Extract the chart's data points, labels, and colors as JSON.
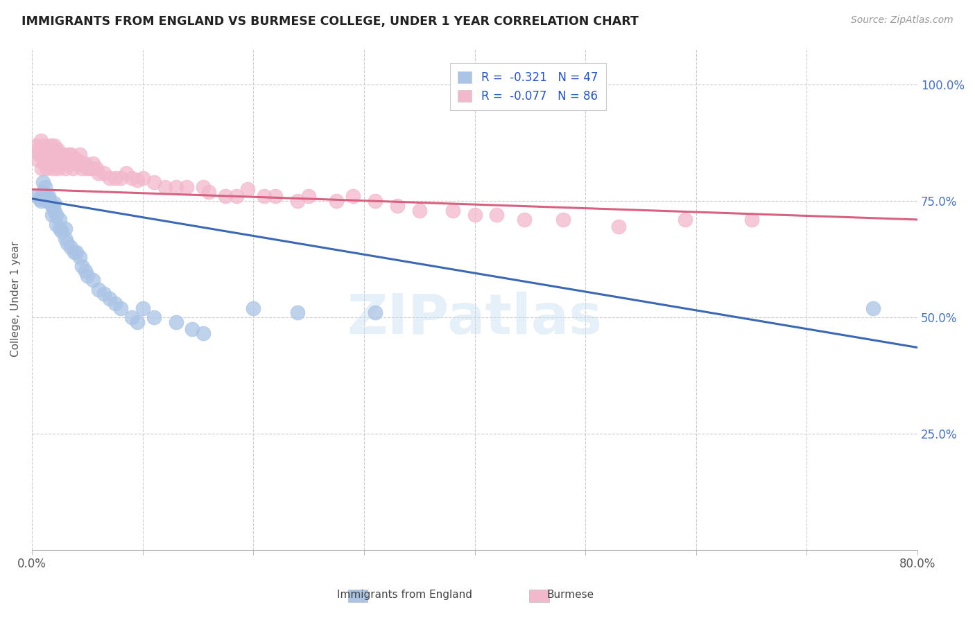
{
  "title": "IMMIGRANTS FROM ENGLAND VS BURMESE COLLEGE, UNDER 1 YEAR CORRELATION CHART",
  "source": "Source: ZipAtlas.com",
  "ylabel": "College, Under 1 year",
  "xlim": [
    0.0,
    0.8
  ],
  "ylim": [
    0.0,
    1.08
  ],
  "yticks_right": [
    0.25,
    0.5,
    0.75,
    1.0
  ],
  "ytick_right_labels": [
    "25.0%",
    "50.0%",
    "75.0%",
    "100.0%"
  ],
  "england_color": "#aac4e6",
  "burmese_color": "#f2b8cb",
  "england_line_color": "#3a68b5",
  "burmese_line_color": "#d96080",
  "england_R": -0.321,
  "england_N": 47,
  "burmese_R": -0.077,
  "burmese_N": 86,
  "legend_label_england": "Immigrants from England",
  "legend_label_burmese": "Burmese",
  "watermark": "ZIPatlas",
  "eng_line_x0": 0.0,
  "eng_line_y0": 0.755,
  "eng_line_x1": 0.8,
  "eng_line_y1": 0.435,
  "bur_line_x0": 0.0,
  "bur_line_y0": 0.775,
  "bur_line_x1": 0.8,
  "bur_line_y1": 0.71,
  "england_scatter_x": [
    0.005,
    0.007,
    0.008,
    0.01,
    0.01,
    0.012,
    0.013,
    0.013,
    0.015,
    0.015,
    0.017,
    0.018,
    0.018,
    0.02,
    0.02,
    0.022,
    0.022,
    0.025,
    0.025,
    0.027,
    0.03,
    0.03,
    0.032,
    0.035,
    0.038,
    0.04,
    0.043,
    0.045,
    0.048,
    0.05,
    0.055,
    0.06,
    0.065,
    0.07,
    0.075,
    0.08,
    0.09,
    0.095,
    0.1,
    0.11,
    0.13,
    0.145,
    0.155,
    0.2,
    0.24,
    0.31,
    0.76
  ],
  "england_scatter_y": [
    0.76,
    0.755,
    0.75,
    0.79,
    0.77,
    0.78,
    0.76,
    0.75,
    0.76,
    0.755,
    0.745,
    0.74,
    0.72,
    0.745,
    0.73,
    0.72,
    0.7,
    0.71,
    0.69,
    0.685,
    0.69,
    0.67,
    0.66,
    0.65,
    0.64,
    0.64,
    0.63,
    0.61,
    0.6,
    0.59,
    0.58,
    0.56,
    0.55,
    0.54,
    0.53,
    0.52,
    0.5,
    0.49,
    0.52,
    0.5,
    0.49,
    0.475,
    0.465,
    0.52,
    0.51,
    0.51,
    0.52
  ],
  "burmese_scatter_x": [
    0.004,
    0.005,
    0.006,
    0.007,
    0.008,
    0.009,
    0.01,
    0.01,
    0.011,
    0.012,
    0.013,
    0.013,
    0.014,
    0.015,
    0.015,
    0.016,
    0.017,
    0.017,
    0.018,
    0.018,
    0.019,
    0.02,
    0.02,
    0.021,
    0.022,
    0.022,
    0.023,
    0.024,
    0.025,
    0.025,
    0.027,
    0.028,
    0.03,
    0.03,
    0.032,
    0.033,
    0.035,
    0.035,
    0.037,
    0.038,
    0.04,
    0.04,
    0.042,
    0.043,
    0.045,
    0.045,
    0.048,
    0.05,
    0.053,
    0.055,
    0.058,
    0.06,
    0.065,
    0.07,
    0.075,
    0.08,
    0.085,
    0.09,
    0.095,
    0.1,
    0.11,
    0.12,
    0.13,
    0.14,
    0.155,
    0.16,
    0.175,
    0.185,
    0.195,
    0.21,
    0.22,
    0.24,
    0.25,
    0.275,
    0.29,
    0.31,
    0.33,
    0.35,
    0.38,
    0.4,
    0.42,
    0.445,
    0.48,
    0.53,
    0.59,
    0.65
  ],
  "burmese_scatter_y": [
    0.87,
    0.84,
    0.86,
    0.85,
    0.88,
    0.82,
    0.87,
    0.85,
    0.83,
    0.86,
    0.84,
    0.82,
    0.86,
    0.85,
    0.84,
    0.83,
    0.87,
    0.85,
    0.86,
    0.84,
    0.82,
    0.85,
    0.87,
    0.84,
    0.85,
    0.83,
    0.86,
    0.82,
    0.84,
    0.85,
    0.83,
    0.85,
    0.84,
    0.82,
    0.84,
    0.85,
    0.83,
    0.85,
    0.82,
    0.84,
    0.84,
    0.83,
    0.83,
    0.85,
    0.83,
    0.82,
    0.83,
    0.82,
    0.82,
    0.83,
    0.82,
    0.81,
    0.81,
    0.8,
    0.8,
    0.8,
    0.81,
    0.8,
    0.795,
    0.8,
    0.79,
    0.78,
    0.78,
    0.78,
    0.78,
    0.77,
    0.76,
    0.76,
    0.775,
    0.76,
    0.76,
    0.75,
    0.76,
    0.75,
    0.76,
    0.75,
    0.74,
    0.73,
    0.73,
    0.72,
    0.72,
    0.71,
    0.71,
    0.695,
    0.71,
    0.71
  ]
}
